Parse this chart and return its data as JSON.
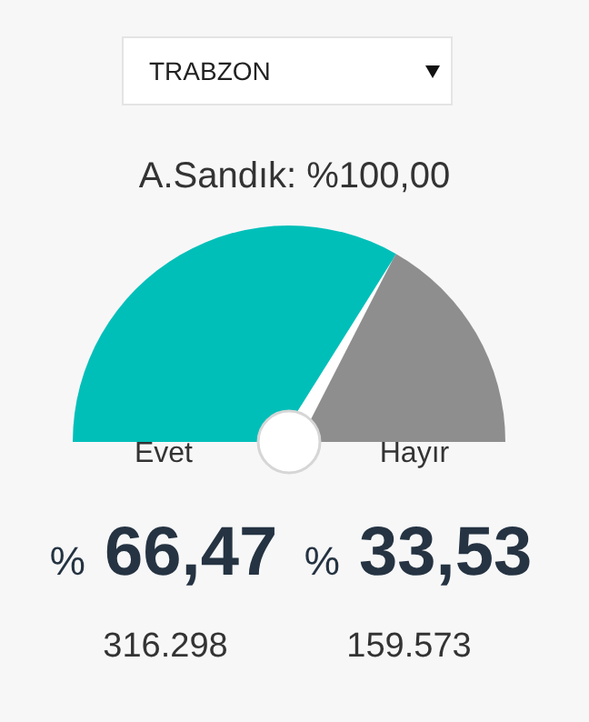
{
  "chart_data": {
    "type": "pie",
    "title": "A.Sandık: %100,00",
    "categories": [
      "Evet",
      "Hayır"
    ],
    "values": [
      66.47,
      33.53
    ],
    "colors": [
      "#00bfb9",
      "#8f8e8f"
    ],
    "value_labels": [
      "% 66,47",
      "% 33,53"
    ],
    "needle": "Hayır",
    "annotations": [
      "TRABZON",
      "316.298",
      "159.573"
    ]
  }
}
